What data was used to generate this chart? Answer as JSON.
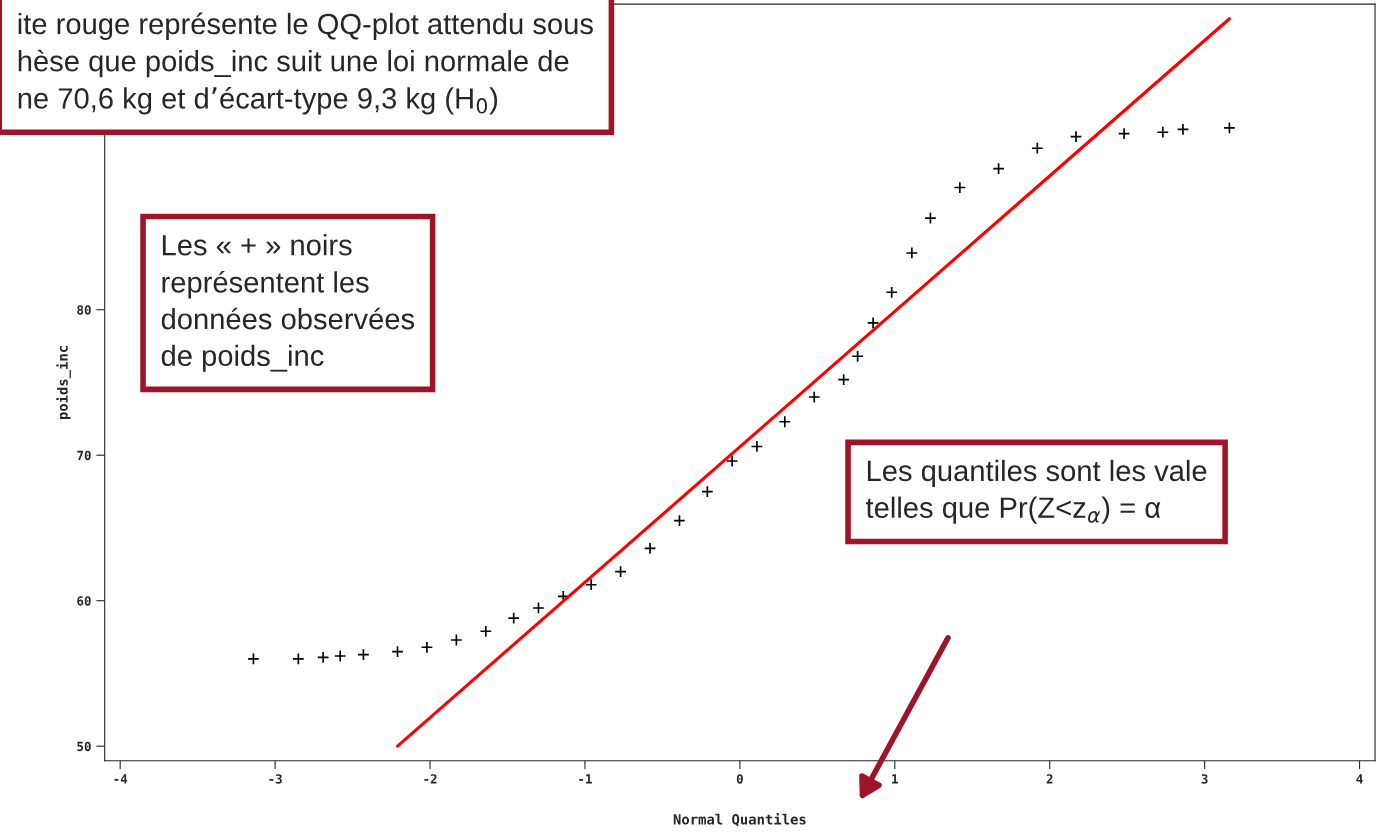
{
  "chart_data": {
    "type": "scatter",
    "xlabel": "Normal Quantiles",
    "ylabel": "poids_inc",
    "xlim": [
      -4.1,
      4.1
    ],
    "xticks": [
      -4,
      -3,
      -2,
      -1,
      0,
      1,
      2,
      3,
      4
    ],
    "ylim": [
      49,
      101
    ],
    "yticks": [
      50,
      60,
      70,
      80
    ],
    "grid": false,
    "legend": false,
    "series": [
      {
        "marker": "cross",
        "color": "#000000",
        "x": [
          -3.14,
          -2.85,
          -2.69,
          -2.58,
          -2.43,
          -2.21,
          -2.02,
          -1.83,
          -1.64,
          -1.46,
          -1.3,
          -1.14,
          -0.96,
          -0.77,
          -0.58,
          -0.39,
          -0.21,
          -0.05,
          0.11,
          0.29,
          0.48,
          0.67,
          0.76,
          0.86,
          0.98,
          1.11,
          1.23,
          1.42,
          1.67,
          1.92,
          2.17,
          2.48,
          2.73,
          2.86,
          3.16
        ],
        "values": [
          56,
          56,
          56.1,
          56.2,
          56.3,
          56.5,
          56.8,
          57.3,
          57.9,
          58.8,
          59.5,
          60.3,
          61.1,
          62,
          63.6,
          65.5,
          67.5,
          69.6,
          70.6,
          72.3,
          74,
          75.2,
          76.8,
          79.1,
          81.2,
          83.9,
          86.3,
          88.4,
          89.7,
          91.1,
          91.9,
          92.1,
          92.2,
          92.4,
          92.5
        ]
      },
      {
        "type": "line",
        "color": "#ff0000",
        "x": [
          -2.21,
          3.16
        ],
        "values": [
          50,
          100
        ]
      }
    ],
    "annotations": [
      "ite rouge représente le QQ-plot attendu sous\nhèse que poids_inc suit une loi normale de\nne 70,6 kg et d’écart-type 9,3 kg (H$_{0}$)",
      "Les « + » noirs\nreprésentent les\ndonnées observées\nde poids_inc",
      "Les quantiles sont les vale\ntelles que Pr(Z<z$_{α}$) = α"
    ]
  }
}
